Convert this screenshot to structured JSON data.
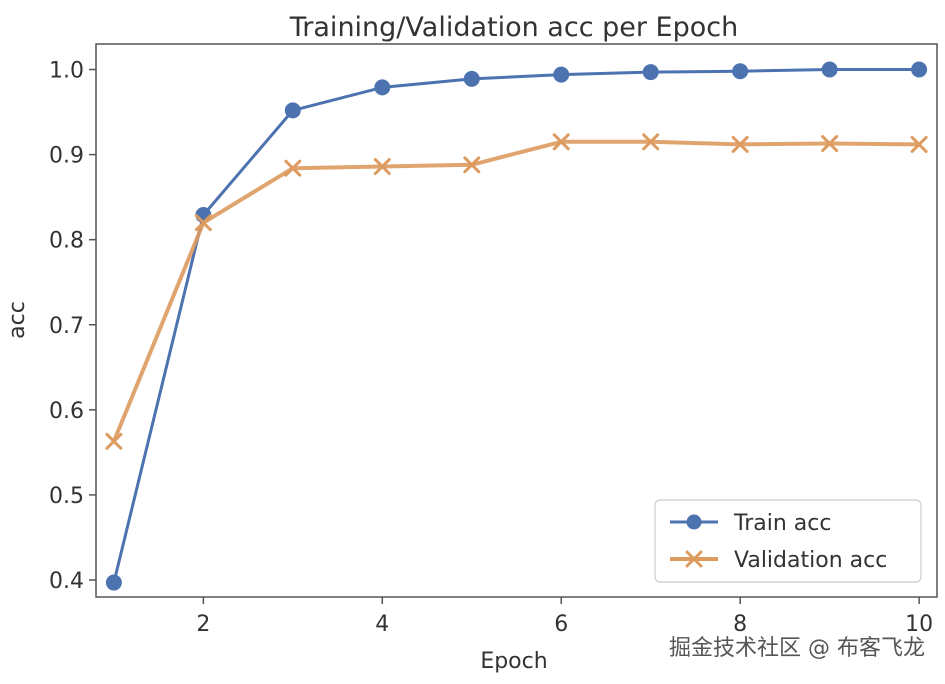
{
  "chart_data": {
    "type": "line",
    "title": "Training/Validation acc per Epoch",
    "xlabel": "Epoch",
    "ylabel": "acc",
    "x": [
      1,
      2,
      3,
      4,
      5,
      6,
      7,
      8,
      9,
      10
    ],
    "xlim": [
      0.8,
      10.2
    ],
    "ylim": [
      0.38,
      1.03
    ],
    "xticks": [
      2,
      4,
      6,
      8,
      10
    ],
    "xtick_labels": [
      "2",
      "4",
      "6",
      "8",
      "10"
    ],
    "yticks": [
      0.4,
      0.5,
      0.6,
      0.7,
      0.8,
      0.9,
      1.0
    ],
    "ytick_labels": [
      "0.4",
      "0.5",
      "0.6",
      "0.7",
      "0.8",
      "0.9",
      "1.0"
    ],
    "grid": false,
    "legend_position": "lower-right",
    "series": [
      {
        "name": "Train acc",
        "marker": "circle",
        "color": "#4c72b0",
        "values": [
          0.397,
          0.829,
          0.952,
          0.979,
          0.989,
          0.994,
          0.997,
          0.998,
          1.0,
          1.0
        ]
      },
      {
        "name": "Validation acc",
        "marker": "x",
        "color": "#dd9b5f",
        "values": [
          0.563,
          0.82,
          0.884,
          0.886,
          0.888,
          0.915,
          0.915,
          0.912,
          0.913,
          0.912
        ]
      }
    ]
  },
  "watermark": "掘金技术社区 @ 布客飞龙"
}
